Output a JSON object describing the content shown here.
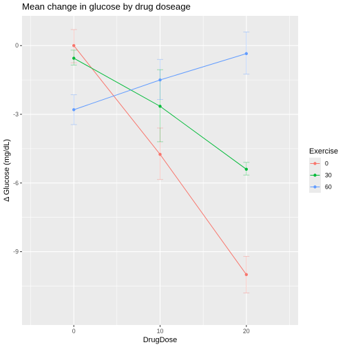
{
  "chart_data": {
    "type": "line",
    "title": "Mean change in glucose by drug doseage",
    "xlabel": "DrugDose",
    "ylabel": "Δ Glucose (mg/dL)",
    "x": [
      0,
      10,
      20
    ],
    "xlim": [
      -6,
      26
    ],
    "ylim": [
      -12.2,
      1.3
    ],
    "x_ticks": [
      0,
      10,
      20
    ],
    "y_ticks": [
      0,
      -3,
      -6,
      -9
    ],
    "x_tick_labels": [
      "0",
      "10",
      "20"
    ],
    "y_tick_labels": [
      "0",
      "-3",
      "-6",
      "-9"
    ],
    "grid": true,
    "legend_title": "Exercise",
    "legend_position": "right",
    "series": [
      {
        "name": "0",
        "color": "#F8766D",
        "values": [
          0.0,
          -4.75,
          -10.0
        ],
        "ymin": [
          -0.75,
          -5.85,
          -10.8
        ],
        "ymax": [
          0.7,
          -3.6,
          -9.2
        ]
      },
      {
        "name": "30",
        "color": "#00BA38",
        "values": [
          -0.55,
          -2.65,
          -5.4
        ],
        "ymin": [
          -0.85,
          -4.2,
          -5.65
        ],
        "ymax": [
          -0.2,
          -1.05,
          -5.1
        ]
      },
      {
        "name": "60",
        "color": "#619CFF",
        "values": [
          -2.8,
          -1.5,
          -0.35
        ],
        "ymin": [
          -3.45,
          -2.35,
          -1.25
        ],
        "ymax": [
          -2.15,
          -0.6,
          0.6
        ]
      }
    ]
  }
}
